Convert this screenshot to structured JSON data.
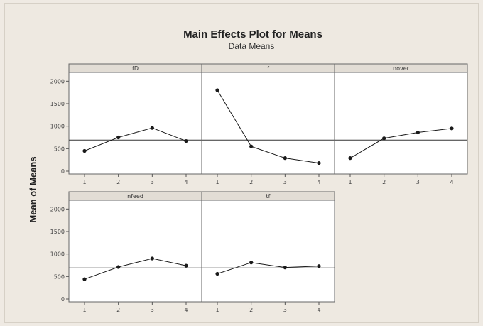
{
  "chart_data": {
    "type": "line",
    "title": "Main Effects Plot for Means",
    "subtitle": "Data Means",
    "ylabel": "Mean of Means",
    "ylim": [
      0,
      2100
    ],
    "yticks": [
      0,
      500,
      1000,
      1500,
      2000
    ],
    "grand_mean": 690,
    "categories": [
      "1",
      "2",
      "3",
      "4"
    ],
    "panels": [
      {
        "name": "fD",
        "values": [
          450,
          750,
          960,
          670
        ]
      },
      {
        "name": "f",
        "values": [
          1800,
          550,
          290,
          180
        ]
      },
      {
        "name": "nover",
        "values": [
          290,
          730,
          860,
          950
        ]
      },
      {
        "name": "nfeed",
        "values": [
          440,
          710,
          900,
          740
        ]
      },
      {
        "name": "tf",
        "values": [
          560,
          810,
          700,
          730
        ]
      }
    ],
    "colors": {
      "line": "#1a1a1a",
      "strip": "#e2ddd5",
      "panel": "#ffffff"
    }
  }
}
